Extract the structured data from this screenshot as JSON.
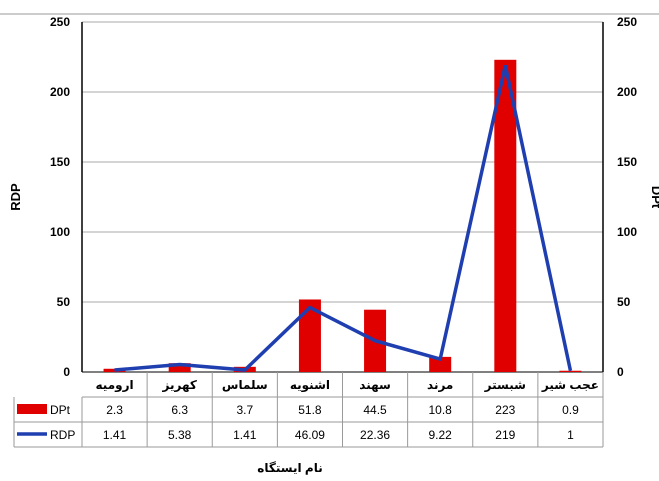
{
  "chart_data": {
    "type": "bar",
    "categories": [
      "ارومیه",
      "کهریز",
      "سلماس",
      "اشنویه",
      "سهند",
      "مرند",
      "شبستر",
      "عجب شیر"
    ],
    "series": [
      {
        "name": "DPt",
        "kind": "bar",
        "color": "#e00000",
        "axis": "right",
        "values": [
          2.3,
          6.3,
          3.7,
          51.8,
          44.5,
          10.8,
          223,
          0.9
        ],
        "labels": [
          "2.3",
          "6.3",
          "3.7",
          "51.8",
          "44.5",
          "10.8",
          "223",
          "0.9"
        ]
      },
      {
        "name": "RDP",
        "kind": "line",
        "color": "#1f3fb0",
        "axis": "left",
        "values": [
          1.41,
          5.38,
          1.41,
          46.09,
          22.36,
          9.22,
          219,
          1
        ],
        "labels": [
          "1.41",
          "5.38",
          "1.41",
          "46.09",
          "22.36",
          "9.22",
          "219",
          "1"
        ]
      }
    ],
    "ylabel": "RDP",
    "y2label": "DPt",
    "xlabel": "نام ایستگاه",
    "ylim": [
      0,
      250
    ],
    "y2lim": [
      0,
      250
    ],
    "yticks": [
      "0",
      "50",
      "100",
      "150",
      "200",
      "250"
    ],
    "y2ticks": [
      "0",
      "50",
      "100",
      "150",
      "200",
      "250"
    ],
    "grid": true,
    "legend": "data table"
  }
}
